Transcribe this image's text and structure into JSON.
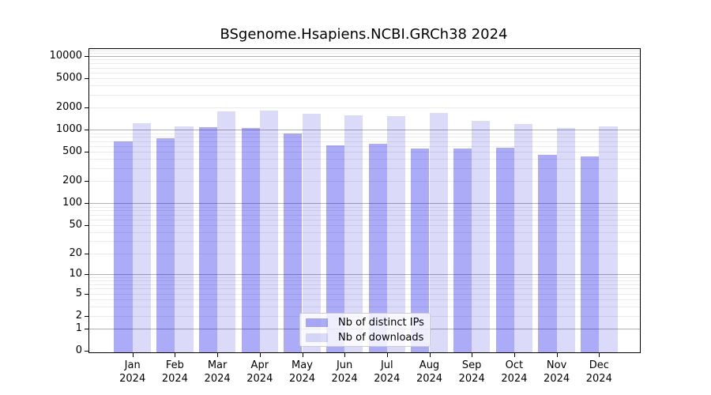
{
  "chart_data": {
    "type": "bar",
    "title": "BSgenome.Hsapiens.NCBI.GRCh38 2024",
    "categories": [
      "Jan",
      "Feb",
      "Mar",
      "Apr",
      "May",
      "Jun",
      "Jul",
      "Aug",
      "Sep",
      "Oct",
      "Nov",
      "Dec"
    ],
    "year": "2024",
    "series": [
      {
        "name": "Nb of distinct IPs",
        "color": "rgba(0,0,234,0.33)",
        "values": [
          700,
          760,
          1085,
          1060,
          890,
          620,
          650,
          560,
          560,
          570,
          458,
          433
        ]
      },
      {
        "name": "Nb of downloads",
        "color": "rgba(0,0,213,0.14)",
        "values": [
          1220,
          1110,
          1770,
          1810,
          1670,
          1570,
          1540,
          1680,
          1330,
          1200,
          1070,
          1120
        ]
      }
    ],
    "yscale": "log1p",
    "ylim": [
      0,
      12500
    ],
    "yticks": [
      10000,
      5000,
      2000,
      1000,
      500,
      200,
      100,
      50,
      20,
      10,
      5,
      2,
      1,
      0
    ],
    "ytick_labels": [
      "10000",
      "5000",
      "2000",
      "1000",
      "500",
      "200",
      "100",
      "50",
      "20",
      "10",
      "5",
      "2",
      "1",
      "0"
    ],
    "major_grid_values": [
      1,
      10,
      100,
      1000,
      10000
    ],
    "grid": true,
    "legend_position": "inside-bottom-center",
    "xlabel": "",
    "ylabel": "",
    "colors": {
      "major_grid": "#b0b0b0",
      "minor_grid": "#ebebeb",
      "spine": "#000000",
      "text": "#000000",
      "legend_border": "#cccccc"
    }
  }
}
